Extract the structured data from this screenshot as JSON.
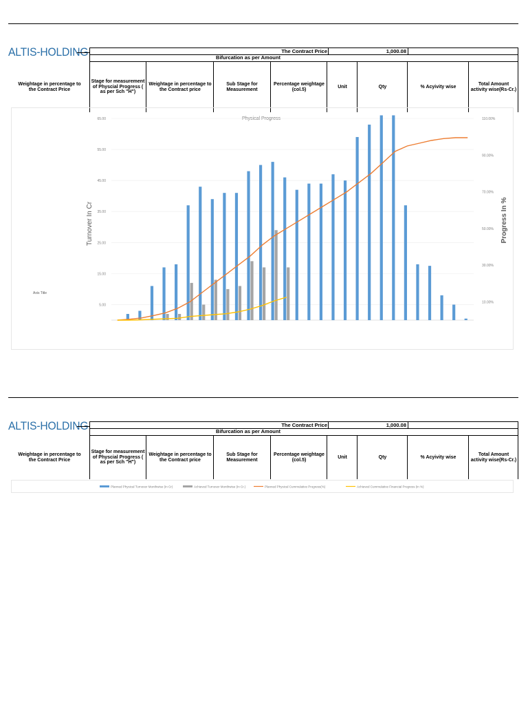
{
  "logo": "ALTIS-HOLDING",
  "header": {
    "contract_price_label": "The Contract Price",
    "contract_price_value": "1,000.08",
    "bifurcation": "Bifurcation as per Amount",
    "columns": [
      "Weightage  in percentage to the Contract Price",
      "Stage for measurement of Physcial Progress ( as per Sch \"H\")",
      "Weightage in percentage to the Contract price",
      "Sub Stage for Measurement",
      "Percentage weightage (col.5)",
      "Unit",
      "Qty",
      "% Acyivity wise",
      "Total Amount activity wise(Rs-Cr.)"
    ]
  },
  "chart_data": {
    "type": "bar",
    "title": "Physical Progress",
    "ylabel": "Turnover In Cr",
    "y2label": "Progress In %",
    "x_axis_title": "Axis Title",
    "ylim": [
      0,
      65
    ],
    "y_ticks": [
      "5.00",
      "15.00",
      "25.00",
      "35.00",
      "45.00",
      "55.00",
      "65.00"
    ],
    "y_tick_values": [
      5,
      15,
      25,
      35,
      45,
      55,
      65
    ],
    "y2lim": [
      0,
      110
    ],
    "y2_ticks": [
      "10.00%",
      "30.00%",
      "50.00%",
      "70.00%",
      "90.00%",
      "110.00%"
    ],
    "y2_tick_values": [
      10,
      30,
      50,
      70,
      90,
      110
    ],
    "grid": true,
    "series": [
      {
        "name": "Planned Physical Turnover Monthwise (In Cr)",
        "kind": "bar",
        "color": "#5b9bd5",
        "values": [
          0,
          2,
          3,
          11,
          17,
          18,
          37,
          43,
          39,
          41,
          41,
          48,
          50,
          51,
          46,
          42,
          44,
          44,
          47,
          45,
          59,
          63,
          66,
          66,
          37,
          18,
          17.5,
          8,
          5,
          0.5
        ]
      },
      {
        "name": "Achieved Turnover Monthwise (In Cr.)",
        "kind": "bar",
        "color": "#a5a5a5",
        "values": [
          0,
          0,
          0,
          0,
          2,
          2,
          12,
          5,
          13,
          10,
          11,
          19,
          17,
          29,
          17
        ]
      },
      {
        "name": "Planned Physical Cummulative  Progress(%)",
        "kind": "line",
        "color": "#ed7d31",
        "values": [
          0,
          0.5,
          1.2,
          2.5,
          4,
          6.5,
          10,
          15,
          20,
          25,
          30,
          35,
          41,
          46,
          50,
          54,
          58,
          62,
          66,
          70,
          75,
          80,
          86,
          92,
          95,
          96.5,
          98,
          99,
          99.5,
          99.5
        ]
      },
      {
        "name": "Achieved Cummulative Financial Progress  (in %)",
        "kind": "line",
        "color": "#ffc000",
        "values": [
          0,
          0,
          0.2,
          0.5,
          0.8,
          1,
          2,
          2.5,
          3,
          3.5,
          4.5,
          6,
          8,
          10.5,
          12.5
        ]
      }
    ]
  },
  "chart_legend_colors": {
    "bar_planned": "#5b9bd5",
    "bar_achieved": "#a5a5a5",
    "line_planned": "#ed7d31",
    "line_achieved": "#ffc000",
    "logo": "#2a6fa8"
  }
}
